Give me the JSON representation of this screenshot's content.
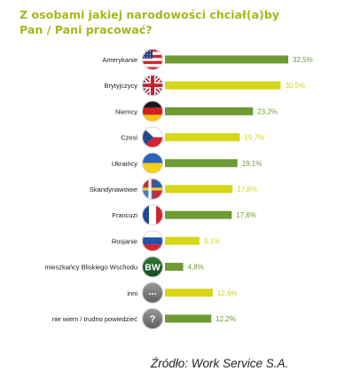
{
  "title_lines": [
    "Z osobami jakiej narodowości chciał(a)by",
    "Pan / Pani pracować?"
  ],
  "source": "Źródło: Work Service S.A.",
  "colors": {
    "green": "#6e9a33",
    "yellow": "#d7d619",
    "title": "#a8b61c"
  },
  "chart_data": {
    "type": "bar",
    "orientation": "horizontal",
    "title": "Z osobami jakiej narodowości chciał(a)by Pan / Pani pracować?",
    "categories": [
      "Amerykanie",
      "Brytyjczycy",
      "Niemcy",
      "Czesi",
      "Ukraińcy",
      "Skandynawowie",
      "Francuzi",
      "Rosjanie",
      "mieszkańcy Bliskiego Wschodu",
      "inni",
      "nie wiem / trudno powiedzieć"
    ],
    "values": [
      32.5,
      30.5,
      23.2,
      19.7,
      19.1,
      17.8,
      17.6,
      9.1,
      4.8,
      12.6,
      12.2
    ],
    "value_labels": [
      "32,5%",
      "30,5%",
      "23,2%",
      "19,7%",
      "19,1%",
      "17,8%",
      "17,6%",
      "9,1%",
      "4,8%",
      "12,6%",
      "12,2%"
    ],
    "bar_colors": [
      "green",
      "yellow",
      "green",
      "yellow",
      "green",
      "yellow",
      "green",
      "yellow",
      "green",
      "yellow",
      "green"
    ],
    "icons": [
      "flag-usa-icon",
      "flag-uk-icon",
      "flag-germany-icon",
      "flag-czech-icon",
      "flag-ukraine-icon",
      "flag-scandinavia-icon",
      "flag-france-icon",
      "flag-russia-icon",
      "bw-badge-icon",
      "ellipsis-badge-icon",
      "question-badge-icon"
    ],
    "icon_text": [
      "",
      "",
      "",
      "",
      "",
      "",
      "",
      "",
      "BW",
      "...",
      "?"
    ],
    "xlim": [
      0,
      32.5
    ],
    "grid": false,
    "legend": "none"
  }
}
